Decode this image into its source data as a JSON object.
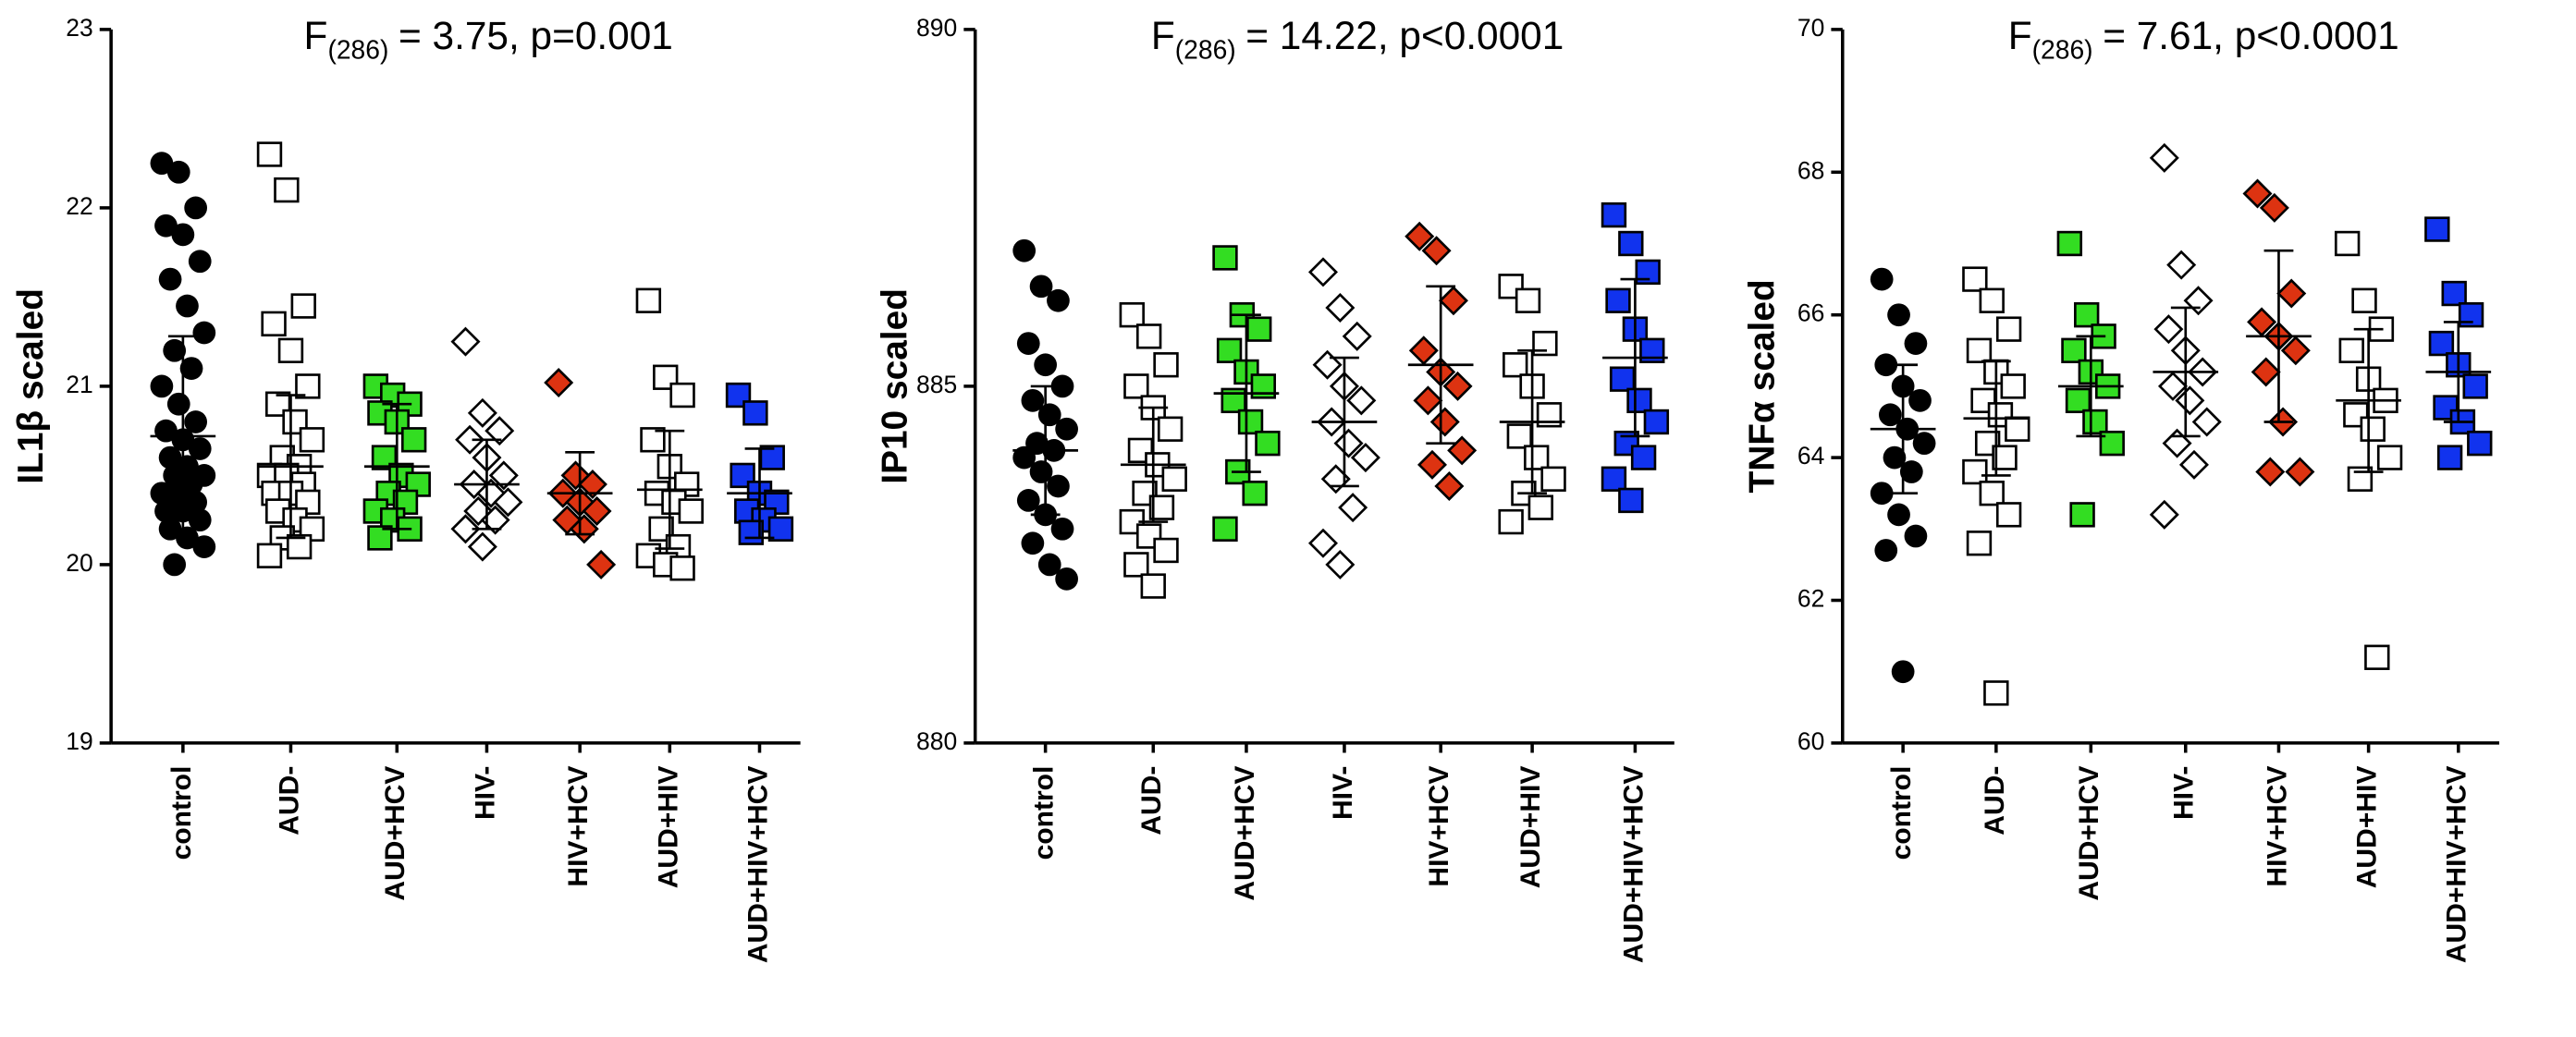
{
  "chart_data": [
    {
      "type": "dot",
      "title": {
        "main": "F",
        "sub": "(286)",
        "rest": "= 3.75, p=0.001"
      },
      "ylabel": "IL1β scaled",
      "ylim": [
        19,
        23
      ],
      "yticks": [
        19,
        20,
        21,
        22,
        23
      ],
      "groups": [
        {
          "name": "control",
          "color": "#000000",
          "marker": "circle",
          "values": [
            22.25,
            22.2,
            22.0,
            21.9,
            21.85,
            21.7,
            21.6,
            21.45,
            21.3,
            21.2,
            21.1,
            21.0,
            20.9,
            20.8,
            20.75,
            20.7,
            20.65,
            20.6,
            20.55,
            20.5,
            20.5,
            20.45,
            20.4,
            20.4,
            20.35,
            20.3,
            20.3,
            20.25,
            20.2,
            20.15,
            20.1,
            20.0
          ],
          "mean": 20.72,
          "sd": 0.56
        },
        {
          "name": "AUD-",
          "color": "#ffffff",
          "marker": "square",
          "values": [
            22.3,
            22.1,
            21.45,
            21.35,
            21.2,
            21.0,
            20.9,
            20.8,
            20.7,
            20.6,
            20.55,
            20.5,
            20.5,
            20.45,
            20.4,
            20.4,
            20.35,
            20.3,
            20.25,
            20.2,
            20.15,
            20.1,
            20.05
          ],
          "mean": 20.55,
          "sd": 0.4
        },
        {
          "name": "AUD+HCV",
          "color": "#33dd22",
          "marker": "square",
          "values": [
            21.0,
            20.95,
            20.9,
            20.85,
            20.8,
            20.7,
            20.6,
            20.5,
            20.45,
            20.4,
            20.35,
            20.3,
            20.25,
            20.2,
            20.15
          ],
          "mean": 20.55,
          "sd": 0.35
        },
        {
          "name": "HIV-",
          "color": "#ffffff",
          "marker": "diamond",
          "values": [
            21.25,
            20.85,
            20.75,
            20.7,
            20.6,
            20.5,
            20.45,
            20.4,
            20.35,
            20.3,
            20.25,
            20.2,
            20.1
          ],
          "mean": 20.45,
          "sd": 0.25
        },
        {
          "name": "HIV+HCV",
          "color": "#dd3311",
          "marker": "diamond",
          "values": [
            21.02,
            20.5,
            20.45,
            20.4,
            20.35,
            20.3,
            20.25,
            20.2,
            20.0
          ],
          "mean": 20.4,
          "sd": 0.23
        },
        {
          "name": "AUD+HIV",
          "color": "#ffffff",
          "marker": "square",
          "values": [
            21.48,
            21.05,
            20.95,
            20.7,
            20.55,
            20.45,
            20.4,
            20.35,
            20.3,
            20.2,
            20.1,
            20.05,
            20.0,
            19.98
          ],
          "mean": 20.42,
          "sd": 0.33
        },
        {
          "name": "AUD+HIV+HCV",
          "color": "#1133ee",
          "marker": "square",
          "values": [
            20.95,
            20.85,
            20.6,
            20.5,
            20.4,
            20.35,
            20.3,
            20.25,
            20.2,
            20.18
          ],
          "mean": 20.4,
          "sd": 0.25
        }
      ]
    },
    {
      "type": "dot",
      "title": {
        "main": "F",
        "sub": "(286)",
        "rest": "= 14.22, p<0.0001"
      },
      "ylabel": "IP10 scaled",
      "ylim": [
        880,
        890
      ],
      "yticks": [
        880,
        885,
        890
      ],
      "groups": [
        {
          "name": "control",
          "color": "#000000",
          "marker": "circle",
          "values": [
            886.9,
            886.4,
            886.2,
            885.6,
            885.3,
            885.0,
            884.8,
            884.6,
            884.4,
            884.2,
            884.1,
            884.0,
            883.8,
            883.6,
            883.4,
            883.2,
            883.0,
            882.8,
            882.5,
            882.3
          ],
          "mean": 884.1,
          "sd": 0.9
        },
        {
          "name": "AUD-",
          "color": "#ffffff",
          "marker": "square",
          "values": [
            886.0,
            885.7,
            885.3,
            885.0,
            884.7,
            884.4,
            884.1,
            883.9,
            883.7,
            883.5,
            883.3,
            883.1,
            882.9,
            882.7,
            882.5,
            882.2
          ],
          "mean": 883.9,
          "sd": 0.8
        },
        {
          "name": "AUD+HCV",
          "color": "#33dd22",
          "marker": "square",
          "values": [
            886.8,
            886.0,
            885.8,
            885.5,
            885.2,
            885.0,
            884.8,
            884.5,
            884.2,
            883.8,
            883.5,
            883.0
          ],
          "mean": 884.9,
          "sd": 1.1
        },
        {
          "name": "HIV-",
          "color": "#ffffff",
          "marker": "diamond",
          "values": [
            886.6,
            886.1,
            885.7,
            885.3,
            885.0,
            884.8,
            884.5,
            884.2,
            884.0,
            883.7,
            883.3,
            882.8,
            882.5
          ],
          "mean": 884.5,
          "sd": 0.9
        },
        {
          "name": "HIV+HCV",
          "color": "#dd3311",
          "marker": "diamond",
          "values": [
            887.1,
            886.9,
            886.2,
            885.5,
            885.2,
            885.0,
            884.8,
            884.5,
            884.1,
            883.9,
            883.6
          ],
          "mean": 885.3,
          "sd": 1.1
        },
        {
          "name": "AUD+HIV",
          "color": "#ffffff",
          "marker": "square",
          "values": [
            886.4,
            886.2,
            885.6,
            885.3,
            885.0,
            884.6,
            884.3,
            884.0,
            883.7,
            883.5,
            883.3,
            883.1
          ],
          "mean": 884.5,
          "sd": 1.0
        },
        {
          "name": "AUD+HIV+HCV",
          "color": "#1133ee",
          "marker": "square",
          "values": [
            887.4,
            887.0,
            886.6,
            886.2,
            885.8,
            885.5,
            885.1,
            884.8,
            884.5,
            884.2,
            884.0,
            883.7,
            883.4
          ],
          "mean": 885.4,
          "sd": 1.1
        }
      ]
    },
    {
      "type": "dot",
      "title": {
        "main": "F",
        "sub": "(286)",
        "rest": "= 7.61, p<0.0001"
      },
      "ylabel": "TNFα scaled",
      "ylim": [
        60,
        70
      ],
      "yticks": [
        60,
        62,
        64,
        66,
        68,
        70
      ],
      "groups": [
        {
          "name": "control",
          "color": "#000000",
          "marker": "circle",
          "values": [
            66.5,
            66.0,
            65.6,
            65.3,
            65.0,
            64.8,
            64.6,
            64.4,
            64.2,
            64.0,
            63.8,
            63.5,
            63.2,
            62.9,
            62.7,
            61.0
          ],
          "mean": 64.4,
          "sd": 0.9
        },
        {
          "name": "AUD-",
          "color": "#ffffff",
          "marker": "square",
          "values": [
            66.5,
            66.2,
            65.8,
            65.5,
            65.2,
            65.0,
            64.8,
            64.6,
            64.4,
            64.2,
            64.0,
            63.8,
            63.5,
            63.2,
            62.8,
            60.7
          ],
          "mean": 64.55,
          "sd": 0.8
        },
        {
          "name": "AUD+HCV",
          "color": "#33dd22",
          "marker": "square",
          "values": [
            67.0,
            66.0,
            65.7,
            65.5,
            65.2,
            65.0,
            64.8,
            64.5,
            64.2,
            63.2
          ],
          "mean": 65.0,
          "sd": 0.7
        },
        {
          "name": "HIV-",
          "color": "#ffffff",
          "marker": "diamond",
          "values": [
            68.2,
            66.7,
            66.2,
            65.8,
            65.5,
            65.2,
            65.0,
            64.8,
            64.5,
            64.2,
            63.9,
            63.2
          ],
          "mean": 65.2,
          "sd": 0.9
        },
        {
          "name": "HIV+HCV",
          "color": "#dd3311",
          "marker": "diamond",
          "values": [
            67.7,
            67.5,
            66.3,
            65.9,
            65.7,
            65.5,
            65.2,
            64.5,
            63.8,
            63.8
          ],
          "mean": 65.7,
          "sd": 1.2
        },
        {
          "name": "AUD+HIV",
          "color": "#ffffff",
          "marker": "square",
          "values": [
            67.0,
            66.2,
            65.8,
            65.5,
            65.1,
            64.8,
            64.6,
            64.4,
            64.0,
            63.7,
            61.2
          ],
          "mean": 64.8,
          "sd": 1.0
        },
        {
          "name": "AUD+HIV+HCV",
          "color": "#1133ee",
          "marker": "square",
          "values": [
            67.2,
            66.3,
            66.0,
            65.6,
            65.3,
            65.0,
            64.7,
            64.5,
            64.2,
            64.0
          ],
          "mean": 65.2,
          "sd": 0.7
        }
      ]
    }
  ]
}
